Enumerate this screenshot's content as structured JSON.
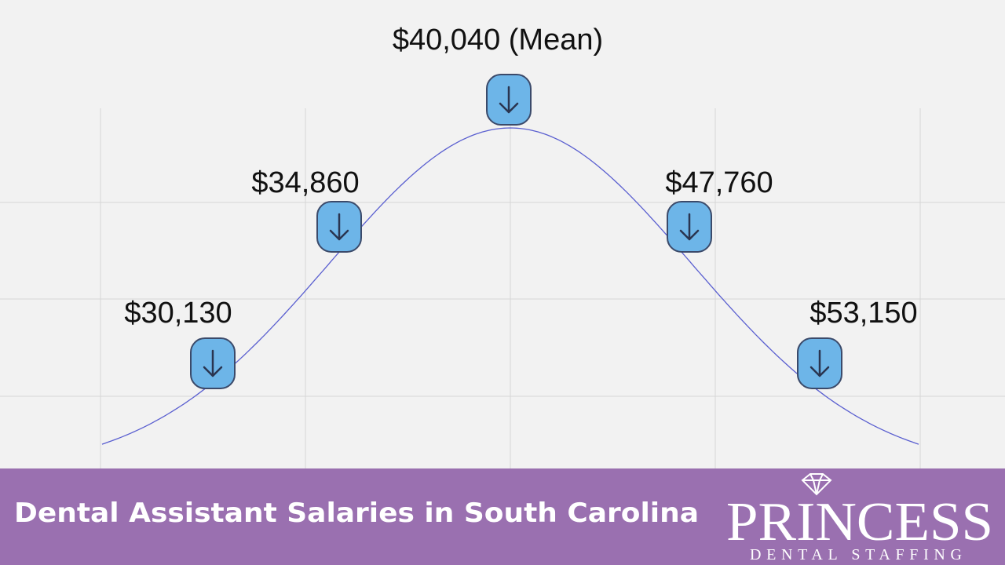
{
  "labels": [
    "$30,130",
    "$34,860",
    "$40,040 (Mean)",
    "$47,760",
    "$53,150"
  ],
  "footer": {
    "title": "Dental Assistant Salaries in South Carolina",
    "brand": "PRINCESS",
    "tagline": "DENTAL STAFFING"
  }
}
